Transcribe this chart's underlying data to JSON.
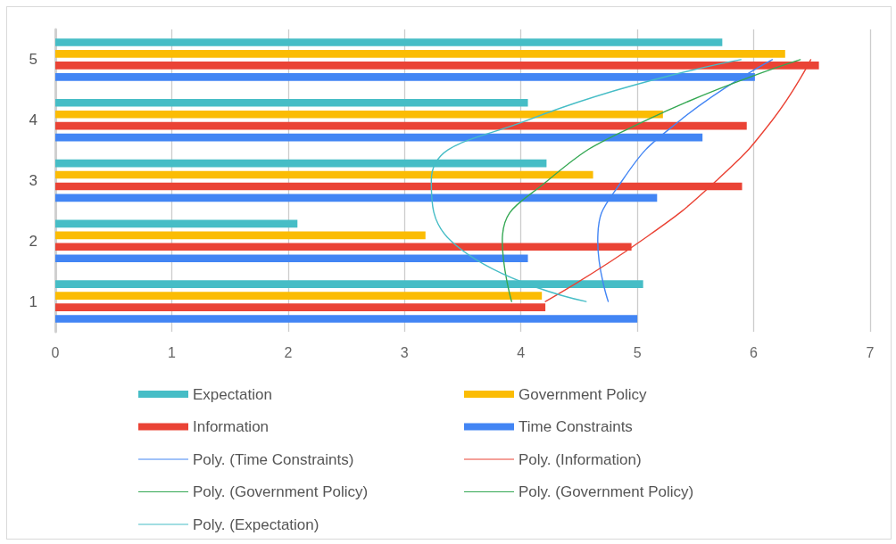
{
  "chart_data": {
    "type": "bar",
    "orientation": "horizontal",
    "categories": [
      "5",
      "4",
      "3",
      "2",
      "1"
    ],
    "series": [
      {
        "name": "Expectation",
        "color": "#46bdc6",
        "values": [
          5.73,
          4.06,
          4.22,
          2.08,
          5.05
        ]
      },
      {
        "name": "Government Policy",
        "color": "#fbbc04",
        "values": [
          6.27,
          5.22,
          4.62,
          3.18,
          4.18
        ]
      },
      {
        "name": "Information",
        "color": "#ea4335",
        "values": [
          6.56,
          5.94,
          5.9,
          4.95,
          4.21
        ]
      },
      {
        "name": "Time Constraints",
        "color": "#4285f4",
        "values": [
          6.01,
          5.56,
          5.17,
          4.06,
          5.0
        ]
      },
      {
        "name": "Poly. (Time Constraints)",
        "type": "line",
        "color": "#4285f4",
        "values": [
          6.16,
          5.37,
          4.87,
          4.66,
          4.75
        ]
      },
      {
        "name": "Poly. (Information)",
        "type": "line",
        "color": "#ea4335",
        "values": [
          6.49,
          6.16,
          5.68,
          5.03,
          4.21
        ]
      },
      {
        "name": "Poly. (Government Policy)",
        "type": "line",
        "color": "#34a853",
        "values": [
          6.4,
          5.08,
          4.23,
          3.84,
          3.92
        ]
      },
      {
        "name": "Poly. (Government Policy)",
        "type": "line",
        "color": "#34a853",
        "values": [
          null,
          null,
          null,
          null,
          null
        ]
      },
      {
        "name": "Poly. (Expectation)",
        "type": "line",
        "color": "#46bdc6",
        "values": [
          5.89,
          4.06,
          3.23,
          3.4,
          4.56
        ]
      }
    ],
    "xlim": [
      0,
      7
    ],
    "xticks": [
      0,
      1,
      2,
      3,
      4,
      5,
      6,
      7
    ],
    "grid": "x",
    "legend": "bottom"
  }
}
